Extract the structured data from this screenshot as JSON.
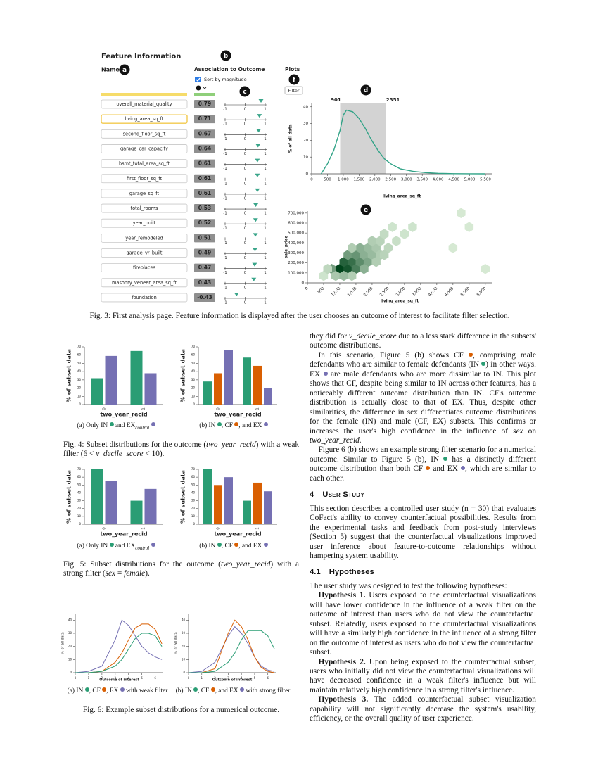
{
  "figure3": {
    "labels": {
      "panel_title": "Feature Information",
      "name": "Name",
      "association": "Association to Outcome",
      "sort": "Sort by magnitude",
      "plots": "Plots",
      "filter": "Filter"
    },
    "badges": [
      "a",
      "b",
      "c",
      "d",
      "e",
      "f"
    ],
    "association_ticks": [
      -1,
      0,
      1
    ],
    "features": {
      "names": [
        "overall_material_quality",
        "living_area_sq_ft",
        "second_floor_sq_ft",
        "garage_car_capacity",
        "bsmt_total_area_sq_ft",
        "first_floor_sq_ft",
        "garage_sq_ft",
        "total_rooms",
        "year_built",
        "year_remodeled",
        "garage_yr_built",
        "fireplaces",
        "masonry_veneer_area_sq_ft",
        "foundation"
      ],
      "values": [
        0.79,
        0.71,
        0.67,
        0.64,
        0.61,
        0.61,
        0.61,
        0.53,
        0.52,
        0.51,
        0.49,
        0.47,
        0.43,
        -0.43
      ]
    },
    "density": {
      "type": "line",
      "color": "#31a387",
      "x": [
        300,
        500,
        700,
        900,
        1000,
        1100,
        1300,
        1500,
        1700,
        1900,
        2100,
        2300,
        2500,
        2800,
        3200,
        3600,
        4000,
        4500,
        5000,
        5500
      ],
      "values": [
        0,
        6,
        14,
        26,
        35,
        38,
        37,
        33,
        27,
        20,
        14,
        9,
        6,
        3,
        1.5,
        0.7,
        0.3,
        0.1,
        0.05,
        0
      ],
      "range": [
        901,
        2351
      ],
      "xlim": [
        0,
        5700
      ],
      "ylim": [
        0,
        42
      ],
      "xticks": [
        0,
        500,
        {
          "value": 1000,
          "label": "1,000"
        },
        {
          "value": 1500,
          "label": "1,500"
        },
        {
          "value": 2000,
          "label": "2,000"
        },
        {
          "value": 2500,
          "label": "2,500"
        },
        {
          "value": 3000,
          "label": "3,000"
        },
        {
          "value": 3500,
          "label": "3,500"
        },
        {
          "value": 4000,
          "label": "4,000"
        },
        {
          "value": 4500,
          "label": "4,500"
        },
        {
          "value": 5000,
          "label": "5,000"
        },
        {
          "value": 5500,
          "label": "5,500"
        }
      ],
      "yticks": [
        0,
        10,
        20,
        30,
        40
      ],
      "xlabel": "living_area_sq_ft",
      "ylabel": "% of all data"
    },
    "hexbin": {
      "type": "hexbin",
      "x": [
        1000,
        1250,
        1125,
        1375,
        1500,
        750,
        875,
        1125,
        1375,
        1625,
        1250,
        1500,
        1750,
        1875,
        1750,
        2000,
        1875,
        1625,
        2125,
        2250,
        2000,
        2250,
        2500,
        1375,
        2375,
        2750,
        2625,
        3000,
        3250,
        4750,
        5000,
        5500,
        4500,
        500,
        625,
        2125,
        2375
      ],
      "y": [
        140000,
        140000,
        210000,
        210000,
        140000,
        140000,
        70000,
        70000,
        70000,
        210000,
        280000,
        280000,
        280000,
        210000,
        140000,
        280000,
        350000,
        350000,
        350000,
        280000,
        420000,
        420000,
        350000,
        350000,
        490000,
        420000,
        560000,
        490000,
        560000,
        700000,
        560000,
        140000,
        350000,
        70000,
        140000,
        210000,
        280000
      ],
      "counts": [
        95,
        80,
        70,
        60,
        50,
        30,
        10,
        15,
        8,
        40,
        30,
        35,
        20,
        25,
        20,
        15,
        15,
        20,
        10,
        8,
        8,
        6,
        5,
        8,
        4,
        3,
        2,
        2,
        2,
        1,
        1,
        1,
        1,
        2,
        5,
        8,
        6
      ],
      "xlim": [
        0,
        5700
      ],
      "ylim": [
        0,
        720000
      ],
      "xticks": [
        0,
        500,
        {
          "value": 1000,
          "label": "1,000"
        },
        {
          "value": 1500,
          "label": "1,500"
        },
        {
          "value": 2000,
          "label": "2,000"
        },
        {
          "value": 2500,
          "label": "2,500"
        },
        {
          "value": 3000,
          "label": "3,000"
        },
        {
          "value": 3500,
          "label": "3,500"
        },
        {
          "value": 4000,
          "label": "4,000"
        },
        {
          "value": 4500,
          "label": "4,500"
        },
        {
          "value": 5000,
          "label": "5,000"
        },
        {
          "value": 5500,
          "label": "5,500"
        }
      ],
      "yticks": [
        0,
        {
          "value": 100000,
          "label": "100,000"
        },
        {
          "value": 200000,
          "label": "200,000"
        },
        {
          "value": 300000,
          "label": "300,000"
        },
        {
          "value": 400000,
          "label": "400,000"
        },
        {
          "value": 500000,
          "label": "500,000"
        },
        {
          "value": 600000,
          "label": "600,000"
        },
        {
          "value": 700000,
          "label": "700,000"
        }
      ],
      "xlabel": "living_area_sq_ft",
      "ylabel": "sale_price"
    },
    "caption": "Fig. 3: First analysis page. Feature information is displayed after the user chooses an outcome of interest to facilitate filter selection."
  },
  "figure4": {
    "charts": [
      {
        "type": "bar",
        "categories": [
          "0",
          "1"
        ],
        "series": [
          {
            "color": "#2a9d74",
            "values": [
              32,
              65
            ]
          },
          {
            "color": "#7570b3",
            "values": [
              59,
              38
            ]
          }
        ],
        "ylim": [
          0,
          70
        ],
        "yticks": [
          0,
          10,
          20,
          30,
          40,
          50,
          60,
          70
        ],
        "xlabel": "two_year_recid",
        "ylabel": "% of subset data",
        "subcaption": [
          "(a) Only IN ",
          {
            "dot": "#2a9d74"
          },
          " and EX",
          {
            "sub": "control"
          },
          " ",
          {
            "dot": "#7570b3"
          }
        ]
      },
      {
        "type": "bar",
        "categories": [
          "0",
          "1"
        ],
        "series": [
          {
            "color": "#2a9d74",
            "values": [
              28,
              57
            ]
          },
          {
            "color": "#d95f02",
            "values": [
              38,
              47
            ]
          },
          {
            "color": "#7570b3",
            "values": [
              66,
              20
            ]
          }
        ],
        "ylim": [
          0,
          70
        ],
        "yticks": [
          0,
          10,
          20,
          30,
          40,
          50,
          60,
          70
        ],
        "xlabel": "two_year_recid",
        "ylabel": "% of subset data",
        "subcaption": [
          "(b) IN ",
          {
            "dot": "#2a9d74"
          },
          ", CF ",
          {
            "dot": "#d95f02"
          },
          ", and EX ",
          {
            "dot": "#7570b3"
          }
        ]
      }
    ],
    "caption": [
      "Fig. 4: Subset distributions for the outcome (",
      {
        "em": "two_year_recid"
      },
      ") with a weak filter (6 < ",
      {
        "em": "v_decile_score"
      },
      " < 10)."
    ]
  },
  "figure5": {
    "charts": [
      {
        "type": "bar",
        "categories": [
          "0",
          "1"
        ],
        "series": [
          {
            "color": "#2a9d74",
            "values": [
              70,
              30
            ]
          },
          {
            "color": "#7570b3",
            "values": [
              55,
              45
            ]
          }
        ],
        "ylim": [
          0,
          70
        ],
        "yticks": [
          0,
          10,
          20,
          30,
          40,
          50,
          60,
          70
        ],
        "xlabel": "two_year_recid",
        "ylabel": "% of subset data",
        "subcaption": [
          "(a) Only IN ",
          {
            "dot": "#2a9d74"
          },
          " and EX",
          {
            "sub": "control"
          },
          " ",
          {
            "dot": "#7570b3"
          }
        ]
      },
      {
        "type": "bar",
        "categories": [
          "0",
          "1"
        ],
        "series": [
          {
            "color": "#2a9d74",
            "values": [
              70,
              30
            ]
          },
          {
            "color": "#d95f02",
            "values": [
              50,
              53
            ]
          },
          {
            "color": "#7570b3",
            "values": [
              60,
              42
            ]
          }
        ],
        "ylim": [
          0,
          70
        ],
        "yticks": [
          0,
          10,
          20,
          30,
          40,
          50,
          60,
          70
        ],
        "xlabel": "two_year_recid",
        "ylabel": "% of subset data",
        "subcaption": [
          "(b) IN ",
          {
            "dot": "#2a9d74"
          },
          ", CF ",
          {
            "dot": "#d95f02"
          },
          ", and EX ",
          {
            "dot": "#7570b3"
          }
        ]
      }
    ],
    "caption": [
      "Fig. 5: Subset distributions for the outcome (",
      {
        "em": "two_year_recid"
      },
      ") with a strong filter (",
      {
        "em": "sex"
      },
      " = ",
      {
        "em": "female"
      },
      ")."
    ]
  },
  "figure6": {
    "charts": [
      {
        "type": "line",
        "x": [
          0,
          1,
          2,
          3,
          3.5,
          4,
          4.5,
          5,
          5.5,
          6,
          6.5
        ],
        "series": [
          {
            "color": "#7570b3",
            "values": [
              0,
              1,
              5,
              25,
              40,
              36,
              28,
              20,
              15,
              12,
              10
            ]
          },
          {
            "color": "#d95f02",
            "values": [
              0,
              0,
              1,
              8,
              15,
              25,
              34,
              37,
              37,
              33,
              22
            ]
          },
          {
            "color": "#2a9d74",
            "values": [
              0,
              0,
              1,
              5,
              10,
              18,
              26,
              30,
              30,
              28,
              20
            ]
          }
        ],
        "xlim": [
          0,
          6.6
        ],
        "ylim": [
          0,
          45
        ],
        "xticks": [
          0,
          1,
          2,
          3,
          4,
          5,
          6
        ],
        "yticks": [
          0,
          10,
          20,
          30,
          40
        ],
        "xlabel": "Outcome of interest",
        "ylabel": "% of all data",
        "subcaption": [
          "(a) IN ",
          {
            "dot": "#2a9d74"
          },
          ", CF ",
          {
            "dot": "#d95f02"
          },
          ", EX ",
          {
            "dot": "#7570b3"
          },
          " with weak filter"
        ]
      },
      {
        "type": "line",
        "x": [
          0,
          1,
          2,
          3,
          3.5,
          4,
          4.5,
          5,
          5.5,
          6,
          6.5
        ],
        "series": [
          {
            "color": "#7570b3",
            "values": [
              0,
              1,
              8,
              28,
              35,
              30,
              22,
              12,
              5,
              2,
              1
            ]
          },
          {
            "color": "#d95f02",
            "values": [
              0,
              0,
              3,
              30,
              40,
              35,
              25,
              12,
              4,
              1,
              0
            ]
          },
          {
            "color": "#2a9d74",
            "values": [
              0,
              0,
              1,
              8,
              15,
              25,
              32,
              32,
              32,
              28,
              18
            ]
          }
        ],
        "xlim": [
          0,
          6.6
        ],
        "ylim": [
          0,
          45
        ],
        "xticks": [
          0,
          1,
          2,
          3,
          4,
          5,
          6
        ],
        "yticks": [
          0,
          10,
          20,
          30,
          40
        ],
        "xlabel": "Outcome of interest",
        "ylabel": "% of all data",
        "subcaption": [
          "(b) IN ",
          {
            "dot": "#2a9d74"
          },
          ", CF ",
          {
            "dot": "#d95f02"
          },
          ", and EX ",
          {
            "dot": "#7570b3"
          },
          " with strong filter"
        ]
      }
    ],
    "caption": [
      "Fig. 6: Example subset distributions for a numerical outcome."
    ]
  },
  "body": {
    "p1": [
      "they did for ",
      {
        "em": "v_decile_score"
      },
      " due to a less stark difference in the subsets' outcome distributions."
    ],
    "p2": [
      "In this scenario, Figure 5 (b) shows CF ",
      {
        "dot": "#d95f02"
      },
      ", comprising male defendants who are similar to female defendants (IN ",
      {
        "dot": "#2a9d74"
      },
      ") in other ways. EX ",
      {
        "dot": "#7570b3"
      },
      " are male defendants who are more dissimilar to IN. This plot shows that CF, despite being similar to IN across other features, has a noticeably different outcome distribution than IN. CF's outcome distribution is actually close to that of EX. Thus, despite other similarities, the difference in sex differentiates outcome distributions for the female (IN) and male (CF, EX) subsets. This confirms or increases the user's high confidence in the influence of ",
      {
        "em": "sex"
      },
      " on ",
      {
        "em": "two_year_recid"
      },
      "."
    ],
    "p3": [
      "Figure 6 (b) shows an example strong filter scenario for a numerical outcome. Similar to Figure 5 (b), IN ",
      {
        "dot": "#2a9d74"
      },
      " has a distinctly different outcome distribution than both CF ",
      {
        "dot": "#d95f02"
      },
      " and EX ",
      {
        "dot": "#7570b3"
      },
      ", which are similar to each other."
    ],
    "section": {
      "number": "4",
      "title": "User Study"
    },
    "p4": [
      "This section describes a controlled user study (n = 30) that evaluates CoFact's ability to convey counterfactual possibilities. Results from the experimental tasks and feedback from post-study interviews (Section 5) suggest that the counterfactual visualizations improved user inference about feature-to-outcome relationships without hampering system usability."
    ],
    "subsection": {
      "number": "4.1",
      "title": "Hypotheses"
    },
    "p5": [
      "The user study was designed to test the following hypotheses:"
    ],
    "h1": [
      {
        "b": "Hypothesis 1."
      },
      " Users exposed to the counterfactual visualizations will have lower confidence in the influence of a weak filter on the outcome of interest than users who do not view the counterfactual subset. Relatedly, users exposed to the counterfactual visualizations will have a similarly high confidence in the influence of a strong filter on the outcome of interest as users who do not view the counterfactual subset."
    ],
    "h2": [
      {
        "b": "Hypothesis 2."
      },
      " Upon being exposed to the counterfactual subset, users who initially did not view the counterfactual visualizations will have decreased confidence in a weak filter's influence but will maintain relatively high confidence in a strong filter's influence."
    ],
    "h3": [
      {
        "b": "Hypothesis 3."
      },
      " The added counterfactual subset visualization capability will not significantly decrease the system's usability, efficiency, or the overall quality of user experience."
    ]
  }
}
